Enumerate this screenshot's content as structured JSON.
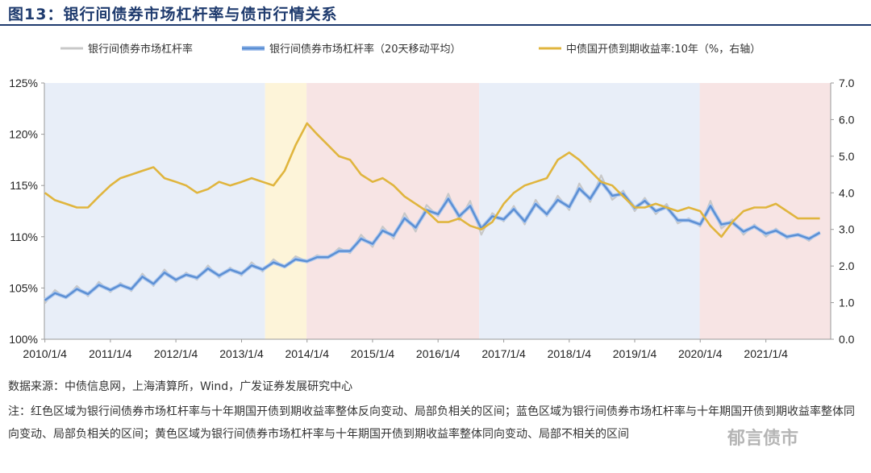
{
  "figure": {
    "title": "图13：银行间债券市场杠杆率与债市行情关系",
    "source": "数据来源：中债信息网，上海清算所，Wind，广发证券发展研究中心",
    "note": "注：红色区域为银行间债券市场杠杆率与十年期国开债到期收益率整体反向变动、局部负相关的区间；蓝色区域为银行间债券市场杠杆率与十年期国开债到期收益率整体同向变动、局部负相关的区间；黄色区域为银行间债券市场杠杆率与十年期国开债到期收益率整体同向变动、局部不相关的区间",
    "watermark": "郁言债市"
  },
  "chart_data": {
    "type": "line",
    "x_tick_labels": [
      "2010/1/4",
      "2011/1/4",
      "2012/1/4",
      "2013/1/4",
      "2014/1/4",
      "2015/1/4",
      "2016/1/4",
      "2017/1/4",
      "2018/1/4",
      "2019/1/4",
      "2020/1/4",
      "2021/1/4"
    ],
    "xlim": [
      "2010-01-01",
      "2021-12-31"
    ],
    "y_left": {
      "ylim": [
        100,
        125
      ],
      "tick_labels": [
        "100%",
        "105%",
        "110%",
        "115%",
        "120%",
        "125%"
      ],
      "ticks": [
        100,
        105,
        110,
        115,
        120,
        125
      ]
    },
    "y_right": {
      "ylim": [
        0,
        7
      ],
      "tick_labels": [
        "0.0",
        "1.0",
        "2.0",
        "3.0",
        "4.0",
        "5.0",
        "6.0",
        "7.0"
      ],
      "ticks": [
        0,
        1,
        2,
        3,
        4,
        5,
        6,
        7
      ]
    },
    "legend": [
      {
        "name": "银行间债券市场杠杆率",
        "color": "#c8c8c8"
      },
      {
        "name": "银行间债券市场杠杆率（20天移动平均）",
        "color": "#5b8fd4"
      },
      {
        "name": "中债国开债到期收益率:10年（%，右轴）",
        "color": "#e0b53e"
      }
    ],
    "regions": [
      {
        "type": "blue",
        "start": "2010-01-01",
        "end": "2013-05-15",
        "color": "#e8eef8"
      },
      {
        "type": "yellow",
        "start": "2013-05-15",
        "end": "2014-01-01",
        "color": "#fdf4d9"
      },
      {
        "type": "red",
        "start": "2014-01-01",
        "end": "2016-08-20",
        "color": "#f7e4e4"
      },
      {
        "type": "blue",
        "start": "2016-08-20",
        "end": "2020-01-01",
        "color": "#e8eef8"
      },
      {
        "type": "red",
        "start": "2020-01-01",
        "end": "2021-12-31",
        "color": "#f7e4e4"
      }
    ],
    "series": [
      {
        "name": "银行间债券市场杠杆率",
        "axis": "left",
        "points": [
          [
            "2010-01-04",
            103.5
          ],
          [
            "2010-03-01",
            104.8
          ],
          [
            "2010-05-01",
            104.0
          ],
          [
            "2010-07-01",
            105.2
          ],
          [
            "2010-09-01",
            104.2
          ],
          [
            "2010-11-01",
            105.6
          ],
          [
            "2011-01-04",
            104.6
          ],
          [
            "2011-03-01",
            105.5
          ],
          [
            "2011-05-01",
            104.7
          ],
          [
            "2011-07-01",
            106.4
          ],
          [
            "2011-09-01",
            105.2
          ],
          [
            "2011-11-01",
            106.8
          ],
          [
            "2012-01-04",
            105.6
          ],
          [
            "2012-03-01",
            106.5
          ],
          [
            "2012-05-01",
            105.8
          ],
          [
            "2012-07-01",
            107.2
          ],
          [
            "2012-09-01",
            106.0
          ],
          [
            "2012-11-01",
            107.0
          ],
          [
            "2013-01-04",
            106.2
          ],
          [
            "2013-03-01",
            107.5
          ],
          [
            "2013-05-01",
            106.6
          ],
          [
            "2013-07-01",
            107.8
          ],
          [
            "2013-09-01",
            107.0
          ],
          [
            "2013-11-01",
            108.1
          ],
          [
            "2014-01-04",
            107.6
          ],
          [
            "2014-03-01",
            108.2
          ],
          [
            "2014-05-01",
            107.9
          ],
          [
            "2014-07-01",
            108.9
          ],
          [
            "2014-09-01",
            108.4
          ],
          [
            "2014-11-01",
            110.2
          ],
          [
            "2015-01-04",
            109.0
          ],
          [
            "2015-03-01",
            111.0
          ],
          [
            "2015-05-01",
            109.8
          ],
          [
            "2015-07-01",
            112.3
          ],
          [
            "2015-09-01",
            110.5
          ],
          [
            "2015-11-01",
            113.1
          ],
          [
            "2016-01-04",
            112.0
          ],
          [
            "2016-03-01",
            114.2
          ],
          [
            "2016-05-01",
            111.6
          ],
          [
            "2016-07-01",
            113.5
          ],
          [
            "2016-09-01",
            110.2
          ],
          [
            "2016-11-01",
            112.3
          ],
          [
            "2017-01-04",
            111.5
          ],
          [
            "2017-03-01",
            113.0
          ],
          [
            "2017-05-01",
            111.2
          ],
          [
            "2017-07-01",
            113.6
          ],
          [
            "2017-09-01",
            112.0
          ],
          [
            "2017-11-01",
            114.0
          ],
          [
            "2018-01-04",
            112.6
          ],
          [
            "2018-03-01",
            115.2
          ],
          [
            "2018-05-01",
            113.4
          ],
          [
            "2018-07-01",
            116.0
          ],
          [
            "2018-09-01",
            113.6
          ],
          [
            "2018-11-01",
            114.5
          ],
          [
            "2019-01-04",
            112.5
          ],
          [
            "2019-03-01",
            113.8
          ],
          [
            "2019-05-01",
            112.2
          ],
          [
            "2019-07-01",
            113.2
          ],
          [
            "2019-09-01",
            111.3
          ],
          [
            "2019-11-01",
            111.8
          ],
          [
            "2020-01-04",
            111.0
          ],
          [
            "2020-03-01",
            113.5
          ],
          [
            "2020-05-01",
            110.8
          ],
          [
            "2020-07-01",
            111.7
          ],
          [
            "2020-09-01",
            110.2
          ],
          [
            "2020-11-01",
            111.2
          ],
          [
            "2021-01-04",
            110.0
          ],
          [
            "2021-03-01",
            110.8
          ],
          [
            "2021-05-01",
            109.8
          ],
          [
            "2021-07-01",
            110.3
          ],
          [
            "2021-09-01",
            109.6
          ],
          [
            "2021-11-01",
            110.5
          ]
        ]
      },
      {
        "name": "银行间债券市场杠杆率（20天移动平均）",
        "axis": "left",
        "points": [
          [
            "2010-01-04",
            103.8
          ],
          [
            "2010-03-01",
            104.5
          ],
          [
            "2010-05-01",
            104.1
          ],
          [
            "2010-07-01",
            104.9
          ],
          [
            "2010-09-01",
            104.4
          ],
          [
            "2010-11-01",
            105.3
          ],
          [
            "2011-01-04",
            104.8
          ],
          [
            "2011-03-01",
            105.3
          ],
          [
            "2011-05-01",
            104.9
          ],
          [
            "2011-07-01",
            106.1
          ],
          [
            "2011-09-01",
            105.4
          ],
          [
            "2011-11-01",
            106.5
          ],
          [
            "2012-01-04",
            105.8
          ],
          [
            "2012-03-01",
            106.3
          ],
          [
            "2012-05-01",
            106.0
          ],
          [
            "2012-07-01",
            106.9
          ],
          [
            "2012-09-01",
            106.2
          ],
          [
            "2012-11-01",
            106.8
          ],
          [
            "2013-01-04",
            106.4
          ],
          [
            "2013-03-01",
            107.2
          ],
          [
            "2013-05-01",
            106.8
          ],
          [
            "2013-07-01",
            107.5
          ],
          [
            "2013-09-01",
            107.1
          ],
          [
            "2013-11-01",
            107.8
          ],
          [
            "2014-01-04",
            107.6
          ],
          [
            "2014-03-01",
            108.0
          ],
          [
            "2014-05-01",
            108.0
          ],
          [
            "2014-07-01",
            108.6
          ],
          [
            "2014-09-01",
            108.6
          ],
          [
            "2014-11-01",
            109.8
          ],
          [
            "2015-01-04",
            109.3
          ],
          [
            "2015-03-01",
            110.6
          ],
          [
            "2015-05-01",
            110.1
          ],
          [
            "2015-07-01",
            111.8
          ],
          [
            "2015-09-01",
            110.9
          ],
          [
            "2015-11-01",
            112.6
          ],
          [
            "2016-01-04",
            112.2
          ],
          [
            "2016-03-01",
            113.7
          ],
          [
            "2016-05-01",
            112.0
          ],
          [
            "2016-07-01",
            113.0
          ],
          [
            "2016-09-01",
            110.8
          ],
          [
            "2016-11-01",
            112.0
          ],
          [
            "2017-01-04",
            111.7
          ],
          [
            "2017-03-01",
            112.7
          ],
          [
            "2017-05-01",
            111.5
          ],
          [
            "2017-07-01",
            113.2
          ],
          [
            "2017-09-01",
            112.2
          ],
          [
            "2017-11-01",
            113.6
          ],
          [
            "2018-01-04",
            112.9
          ],
          [
            "2018-03-01",
            114.7
          ],
          [
            "2018-05-01",
            113.7
          ],
          [
            "2018-07-01",
            115.4
          ],
          [
            "2018-09-01",
            114.0
          ],
          [
            "2018-11-01",
            114.2
          ],
          [
            "2019-01-04",
            112.8
          ],
          [
            "2019-03-01",
            113.5
          ],
          [
            "2019-05-01",
            112.5
          ],
          [
            "2019-07-01",
            112.9
          ],
          [
            "2019-09-01",
            111.6
          ],
          [
            "2019-11-01",
            111.6
          ],
          [
            "2020-01-04",
            111.2
          ],
          [
            "2020-03-01",
            113.0
          ],
          [
            "2020-05-01",
            111.2
          ],
          [
            "2020-07-01",
            111.4
          ],
          [
            "2020-09-01",
            110.5
          ],
          [
            "2020-11-01",
            111.0
          ],
          [
            "2021-01-04",
            110.3
          ],
          [
            "2021-03-01",
            110.6
          ],
          [
            "2021-05-01",
            110.0
          ],
          [
            "2021-07-01",
            110.2
          ],
          [
            "2021-09-01",
            109.8
          ],
          [
            "2021-11-01",
            110.4
          ]
        ]
      },
      {
        "name": "中债国开债到期收益率:10年（%，右轴）",
        "axis": "right",
        "points": [
          [
            "2010-01-04",
            4.0
          ],
          [
            "2010-03-01",
            3.8
          ],
          [
            "2010-05-01",
            3.7
          ],
          [
            "2010-07-01",
            3.6
          ],
          [
            "2010-09-01",
            3.6
          ],
          [
            "2010-11-01",
            3.9
          ],
          [
            "2011-01-04",
            4.2
          ],
          [
            "2011-03-01",
            4.4
          ],
          [
            "2011-05-01",
            4.5
          ],
          [
            "2011-07-01",
            4.6
          ],
          [
            "2011-09-01",
            4.7
          ],
          [
            "2011-11-01",
            4.4
          ],
          [
            "2012-01-04",
            4.3
          ],
          [
            "2012-03-01",
            4.2
          ],
          [
            "2012-05-01",
            4.0
          ],
          [
            "2012-07-01",
            4.1
          ],
          [
            "2012-09-01",
            4.3
          ],
          [
            "2012-11-01",
            4.2
          ],
          [
            "2013-01-04",
            4.3
          ],
          [
            "2013-03-01",
            4.4
          ],
          [
            "2013-05-01",
            4.3
          ],
          [
            "2013-07-01",
            4.2
          ],
          [
            "2013-09-01",
            4.6
          ],
          [
            "2013-11-01",
            5.3
          ],
          [
            "2014-01-04",
            5.9
          ],
          [
            "2014-03-01",
            5.6
          ],
          [
            "2014-05-01",
            5.3
          ],
          [
            "2014-07-01",
            5.0
          ],
          [
            "2014-09-01",
            4.9
          ],
          [
            "2014-11-01",
            4.5
          ],
          [
            "2015-01-04",
            4.3
          ],
          [
            "2015-03-01",
            4.4
          ],
          [
            "2015-05-01",
            4.2
          ],
          [
            "2015-07-01",
            3.9
          ],
          [
            "2015-09-01",
            3.7
          ],
          [
            "2015-11-01",
            3.5
          ],
          [
            "2016-01-04",
            3.2
          ],
          [
            "2016-03-01",
            3.2
          ],
          [
            "2016-05-01",
            3.3
          ],
          [
            "2016-07-01",
            3.1
          ],
          [
            "2016-09-01",
            3.0
          ],
          [
            "2016-11-01",
            3.2
          ],
          [
            "2017-01-04",
            3.7
          ],
          [
            "2017-03-01",
            4.0
          ],
          [
            "2017-05-01",
            4.2
          ],
          [
            "2017-07-01",
            4.3
          ],
          [
            "2017-09-01",
            4.4
          ],
          [
            "2017-11-01",
            4.9
          ],
          [
            "2018-01-04",
            5.1
          ],
          [
            "2018-03-01",
            4.9
          ],
          [
            "2018-05-01",
            4.6
          ],
          [
            "2018-07-01",
            4.3
          ],
          [
            "2018-09-01",
            4.2
          ],
          [
            "2018-11-01",
            3.9
          ],
          [
            "2019-01-04",
            3.6
          ],
          [
            "2019-03-01",
            3.6
          ],
          [
            "2019-05-01",
            3.7
          ],
          [
            "2019-07-01",
            3.6
          ],
          [
            "2019-09-01",
            3.5
          ],
          [
            "2019-11-01",
            3.6
          ],
          [
            "2020-01-04",
            3.5
          ],
          [
            "2020-03-01",
            3.1
          ],
          [
            "2020-05-01",
            2.8
          ],
          [
            "2020-07-01",
            3.2
          ],
          [
            "2020-09-01",
            3.5
          ],
          [
            "2020-11-01",
            3.6
          ],
          [
            "2021-01-04",
            3.6
          ],
          [
            "2021-03-01",
            3.7
          ],
          [
            "2021-05-01",
            3.5
          ],
          [
            "2021-07-01",
            3.3
          ],
          [
            "2021-09-01",
            3.3
          ],
          [
            "2021-11-01",
            3.3
          ]
        ]
      }
    ]
  }
}
